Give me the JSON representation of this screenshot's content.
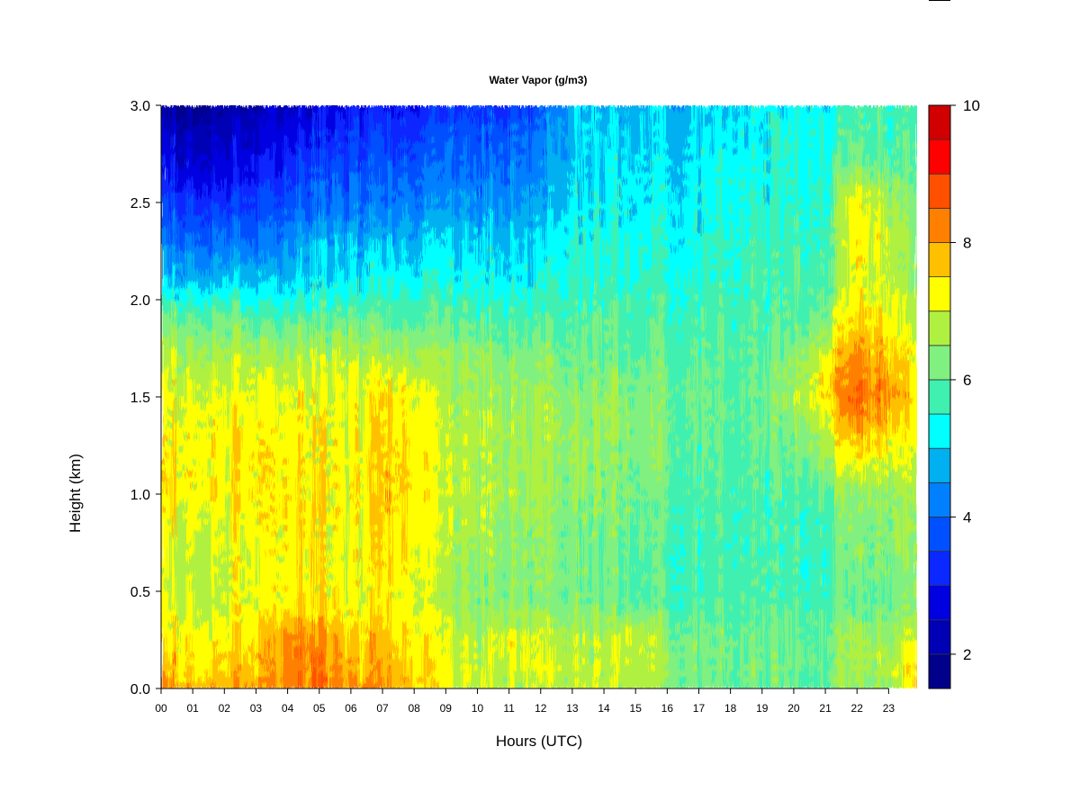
{
  "chart_data": {
    "type": "heatmap",
    "title": "Water Vapor (g/m3)",
    "xlabel": "Hours (UTC)",
    "ylabel": "Height (km)",
    "x_ticks": [
      "00",
      "01",
      "02",
      "03",
      "04",
      "05",
      "06",
      "07",
      "08",
      "09",
      "10",
      "11",
      "12",
      "13",
      "14",
      "15",
      "16",
      "17",
      "18",
      "19",
      "20",
      "21",
      "22",
      "23"
    ],
    "xlim": [
      0,
      23.9
    ],
    "y_ticks": [
      "0.0",
      "0.5",
      "1.0",
      "1.5",
      "2.0",
      "2.5",
      "3.0"
    ],
    "ylim": [
      0,
      3.0
    ],
    "colorbar": {
      "ticks": [
        "2",
        "4",
        "6",
        "8",
        "10"
      ],
      "range": [
        1.5,
        10
      ],
      "levels": [
        1.5,
        2.0,
        2.5,
        3.0,
        3.5,
        4.0,
        4.5,
        5.0,
        5.5,
        6.0,
        6.5,
        7.0,
        7.5,
        8.0,
        8.5,
        9.0,
        9.5,
        10.0
      ],
      "colors": [
        "#00008b",
        "#0000b5",
        "#0000e0",
        "#0a28ff",
        "#0050ff",
        "#0080ff",
        "#00b0f0",
        "#00ffff",
        "#40f0b0",
        "#80f080",
        "#b0f040",
        "#ffff00",
        "#ffc000",
        "#ff8000",
        "#ff5000",
        "#ff0000",
        "#d00000",
        "#800000"
      ]
    },
    "grid": false,
    "legend": "colorbar-right",
    "field_profiles": {
      "heights_km": [
        0.0,
        0.1,
        0.25,
        0.45,
        0.7,
        1.0,
        1.3,
        1.5,
        1.7,
        1.9,
        2.1,
        2.3,
        2.5,
        2.7,
        2.9,
        3.0
      ],
      "hour_keys": [
        0,
        1,
        2,
        3,
        4,
        5,
        6,
        7,
        8,
        9,
        10,
        11,
        12,
        13,
        14,
        15,
        16,
        17,
        18,
        19,
        20,
        21,
        22,
        23,
        23.9
      ],
      "values": [
        [
          8.0,
          7.8,
          7.4,
          7.0,
          7.0,
          7.4,
          7.4,
          7.2,
          6.8,
          6.2,
          5.0,
          4.2,
          3.5,
          3.0,
          2.4,
          2.2
        ],
        [
          8.0,
          7.6,
          7.4,
          7.0,
          7.0,
          7.4,
          7.4,
          7.2,
          6.8,
          6.2,
          5.0,
          4.2,
          3.5,
          2.8,
          2.3,
          2.1
        ],
        [
          8.0,
          7.6,
          7.4,
          7.0,
          7.0,
          7.3,
          7.3,
          7.1,
          6.8,
          6.2,
          5.0,
          4.2,
          3.4,
          2.8,
          2.3,
          2.1
        ],
        [
          8.0,
          7.8,
          7.6,
          7.2,
          7.2,
          7.4,
          7.4,
          7.2,
          6.8,
          6.0,
          4.9,
          4.1,
          3.5,
          3.0,
          2.5,
          2.3
        ],
        [
          8.3,
          8.3,
          8.2,
          7.4,
          7.4,
          7.5,
          7.4,
          7.2,
          6.8,
          6.0,
          5.0,
          4.4,
          3.9,
          3.3,
          2.8,
          2.6
        ],
        [
          8.4,
          8.3,
          8.2,
          7.4,
          7.3,
          7.4,
          7.3,
          7.1,
          6.8,
          6.0,
          5.2,
          4.8,
          4.0,
          3.6,
          3.0,
          2.7
        ],
        [
          8.0,
          7.7,
          7.5,
          7.0,
          7.0,
          7.1,
          7.1,
          7.0,
          6.8,
          6.0,
          5.1,
          4.7,
          4.0,
          3.6,
          3.2,
          2.9
        ],
        [
          8.2,
          7.9,
          7.8,
          7.3,
          7.5,
          7.7,
          7.6,
          7.5,
          6.8,
          6.1,
          5.4,
          4.8,
          4.2,
          3.8,
          3.4,
          3.1
        ],
        [
          7.9,
          7.6,
          7.5,
          7.2,
          7.4,
          7.5,
          7.5,
          7.4,
          6.8,
          6.0,
          5.4,
          4.9,
          4.3,
          3.9,
          3.4,
          3.2
        ],
        [
          7.0,
          7.2,
          7.0,
          6.6,
          6.7,
          6.8,
          6.8,
          6.6,
          6.5,
          6.0,
          5.4,
          5.0,
          4.4,
          4.0,
          3.6,
          3.3
        ],
        [
          6.8,
          7.0,
          6.8,
          6.4,
          6.6,
          6.7,
          6.8,
          6.7,
          6.5,
          5.9,
          5.4,
          5.0,
          4.5,
          4.0,
          3.7,
          3.4
        ],
        [
          6.8,
          7.0,
          7.2,
          6.4,
          6.5,
          6.6,
          6.7,
          6.6,
          6.3,
          5.8,
          5.3,
          5.0,
          4.5,
          4.2,
          3.8,
          3.5
        ],
        [
          6.9,
          7.0,
          6.9,
          6.3,
          6.3,
          6.5,
          6.6,
          6.5,
          6.3,
          5.8,
          5.3,
          5.0,
          4.6,
          4.2,
          4.0,
          3.8
        ],
        [
          6.9,
          6.8,
          6.8,
          6.2,
          6.2,
          6.4,
          6.5,
          6.4,
          6.1,
          5.9,
          5.6,
          5.4,
          5.2,
          5.0,
          4.9,
          4.8
        ],
        [
          6.8,
          6.8,
          6.8,
          6.1,
          6.1,
          6.3,
          6.4,
          6.4,
          6.1,
          5.9,
          5.6,
          5.4,
          5.2,
          5.1,
          4.9,
          4.8
        ],
        [
          6.8,
          6.9,
          7.0,
          6.0,
          6.0,
          6.2,
          6.3,
          6.3,
          6.0,
          5.8,
          5.6,
          5.4,
          5.2,
          5.1,
          4.9,
          4.8
        ],
        [
          6.4,
          6.5,
          6.4,
          5.9,
          5.8,
          6.0,
          6.2,
          6.2,
          6.0,
          5.8,
          5.6,
          5.4,
          5.2,
          5.1,
          4.9,
          4.8
        ],
        [
          6.1,
          6.2,
          6.2,
          5.8,
          5.7,
          5.9,
          6.0,
          6.1,
          6.0,
          5.8,
          5.6,
          5.5,
          5.3,
          5.2,
          5.0,
          4.9
        ],
        [
          6.0,
          6.1,
          6.1,
          5.8,
          5.7,
          5.8,
          5.9,
          6.0,
          5.9,
          5.8,
          5.6,
          5.5,
          5.4,
          5.3,
          5.1,
          5.0
        ],
        [
          6.0,
          6.1,
          6.1,
          5.8,
          5.7,
          5.8,
          6.0,
          6.0,
          5.9,
          5.8,
          5.7,
          5.6,
          5.4,
          5.3,
          5.2,
          5.1
        ],
        [
          6.0,
          6.1,
          6.1,
          5.8,
          5.7,
          5.8,
          6.2,
          6.6,
          6.5,
          5.9,
          5.8,
          5.7,
          5.6,
          5.5,
          5.5,
          5.4
        ],
        [
          6.1,
          6.2,
          6.2,
          5.9,
          5.8,
          6.1,
          7.0,
          7.6,
          7.3,
          6.4,
          6.0,
          5.8,
          5.7,
          5.6,
          5.5,
          5.4
        ],
        [
          6.4,
          6.6,
          6.6,
          6.0,
          6.2,
          6.4,
          7.8,
          8.5,
          8.2,
          7.5,
          7.2,
          7.4,
          7.3,
          6.2,
          5.8,
          5.7
        ],
        [
          6.5,
          6.8,
          6.6,
          6.1,
          6.3,
          6.5,
          7.6,
          8.2,
          7.8,
          7.3,
          7.0,
          7.0,
          6.8,
          6.0,
          5.8,
          5.7
        ],
        [
          7.6,
          7.4,
          7.0,
          6.3,
          6.4,
          6.5,
          7.0,
          7.3,
          7.0,
          6.6,
          6.3,
          6.2,
          6.0,
          5.9,
          5.8,
          5.7
        ]
      ]
    }
  }
}
